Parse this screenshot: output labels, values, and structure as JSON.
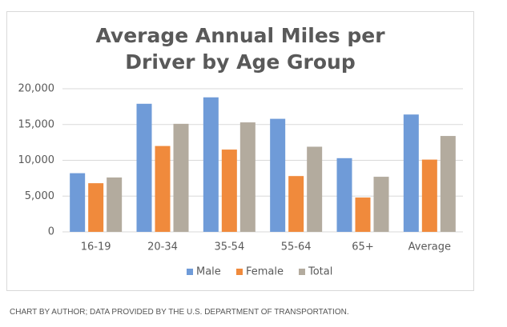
{
  "chart_data": {
    "type": "bar",
    "title": "Average Annual Miles per Driver by Age Group",
    "categories": [
      "16-19",
      "20-34",
      "35-54",
      "55-64",
      "65+",
      "Average"
    ],
    "series": [
      {
        "name": "Male",
        "color": "#6f9bd8",
        "values": [
          8200,
          17900,
          18800,
          15800,
          10300,
          16400
        ]
      },
      {
        "name": "Female",
        "color": "#f08a3c",
        "values": [
          6800,
          12000,
          11500,
          7800,
          4800,
          10100
        ]
      },
      {
        "name": "Total",
        "color": "#b3ab9e",
        "values": [
          7600,
          15100,
          15300,
          11900,
          7700,
          13400
        ]
      }
    ],
    "ylim": [
      0,
      20000
    ],
    "yticks": [
      0,
      {
        "value": 5000,
        "label": "5,000"
      },
      {
        "value": 10000,
        "label": "10,000"
      },
      {
        "value": 15000,
        "label": "15,000"
      },
      {
        "value": 20000,
        "label": "20,000"
      }
    ],
    "grid": true,
    "legend": "bottom"
  },
  "caption": "CHART BY AUTHOR; DATA PROVIDED BY THE U.S. DEPARTMENT OF TRANSPORTATION."
}
